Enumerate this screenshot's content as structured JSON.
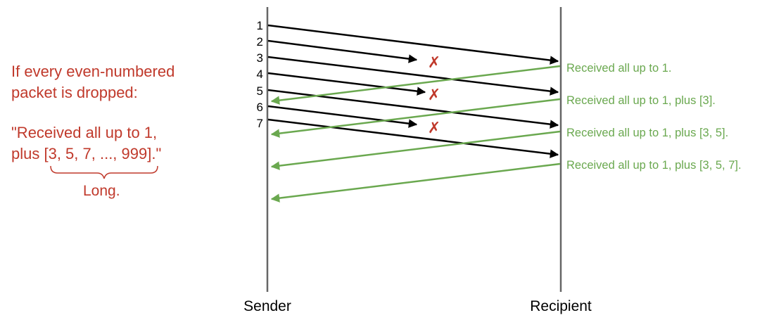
{
  "note": {
    "line1": "If every even-numbered",
    "line2": "packet is dropped:",
    "quote1": "\"Received all up to 1,",
    "quote2": "plus [3, 5, 7, ..., 999].\"",
    "brace_label": "Long."
  },
  "sender_label": "Sender",
  "recipient_label": "Recipient",
  "packets": [
    "1",
    "2",
    "3",
    "4",
    "5",
    "6",
    "7"
  ],
  "drop_mark": "✗",
  "acks": [
    "Received all up to 1.",
    "Received all up to 1, plus [3].",
    "Received all up to 1, plus [3, 5].",
    "Received all up to 1, plus [3, 5, 7]."
  ],
  "colors": {
    "note": "#c0392b",
    "ack": "#6aa84f",
    "packet": "#000000",
    "timeline": "#666666",
    "drop": "#c0392b"
  }
}
